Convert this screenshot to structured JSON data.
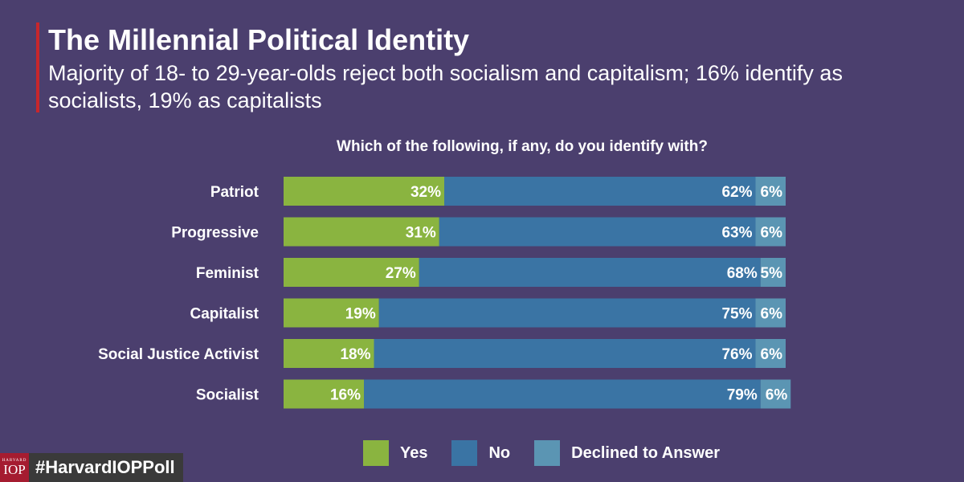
{
  "header": {
    "title": "The Millennial Political Identity",
    "subtitle": "Majority of 18- to 29-year-olds reject both socialism and capitalism; 16% identify as socialists, 19% as capitalists"
  },
  "chart_data": {
    "type": "bar",
    "orientation": "horizontal",
    "stacked": true,
    "title": "Which of the following, if any, do you identify with?",
    "categories": [
      "Patriot",
      "Progressive",
      "Feminist",
      "Capitalist",
      "Social Justice Activist",
      "Socialist"
    ],
    "series": [
      {
        "name": "Yes",
        "color": "#8ab440",
        "values": [
          32,
          31,
          27,
          19,
          18,
          16
        ],
        "labels": [
          "32%",
          "31%",
          "27%",
          "19%",
          "18%",
          "16%"
        ]
      },
      {
        "name": "No",
        "color": "#3a74a4",
        "values": [
          62,
          63,
          68,
          75,
          76,
          79
        ],
        "labels": [
          "62%",
          "63%",
          "68%",
          "75%",
          "76%",
          "79%"
        ]
      },
      {
        "name": "Declined to Answer",
        "color": "#5b95b3",
        "values": [
          6,
          6,
          5,
          6,
          6,
          6
        ],
        "labels": [
          "6%",
          "6%",
          "5%",
          "6%",
          "6%",
          "6%"
        ]
      }
    ],
    "legend_position": "bottom",
    "grid": false
  },
  "footer": {
    "logo_small": "HARVARD",
    "logo_big": "IOP",
    "hashtag": "#HarvardIOPPoll"
  }
}
